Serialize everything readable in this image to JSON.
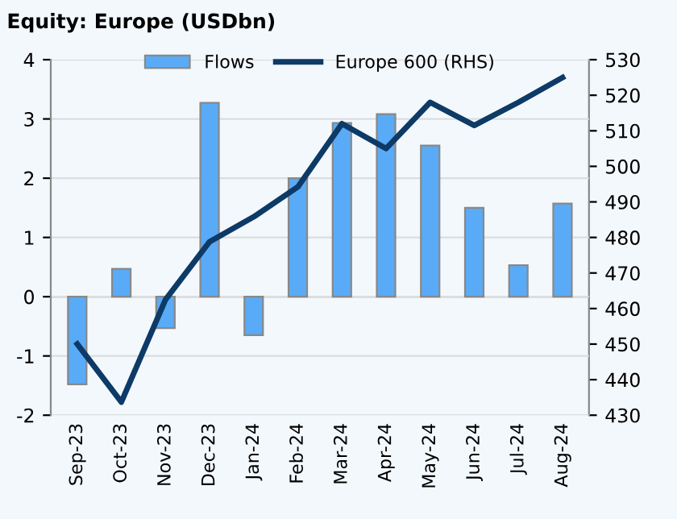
{
  "chart_data": {
    "type": "bar",
    "title": "Equity: Europe (USDbn)",
    "categories": [
      "Sep-23",
      "Oct-23",
      "Nov-23",
      "Dec-23",
      "Jan-24",
      "Feb-24",
      "Mar-24",
      "Apr-24",
      "May-24",
      "Jun-24",
      "Jul-24",
      "Aug-24"
    ],
    "series": [
      {
        "name": "Flows",
        "color": "#5aabf7",
        "values": [
          -1.48,
          0.47,
          -0.53,
          3.27,
          -0.65,
          2.0,
          2.93,
          3.08,
          2.55,
          1.5,
          0.53,
          1.57
        ]
      },
      {
        "name": "Europe 600 (RHS)",
        "type": "line",
        "axis": "y2",
        "color": "#0d3a66",
        "values": [
          450,
          433.7,
          462.5,
          478.8,
          485.8,
          494.2,
          512,
          505,
          518,
          511.5,
          518,
          525
        ]
      }
    ],
    "ylim": [
      -2,
      4
    ],
    "yticks": [
      -2,
      -1,
      0,
      1,
      2,
      3,
      4
    ],
    "y2lim": [
      430,
      530
    ],
    "y2ticks": [
      430,
      440,
      450,
      460,
      470,
      480,
      490,
      500,
      510,
      520,
      530
    ],
    "grid": "y",
    "legend": "top"
  }
}
